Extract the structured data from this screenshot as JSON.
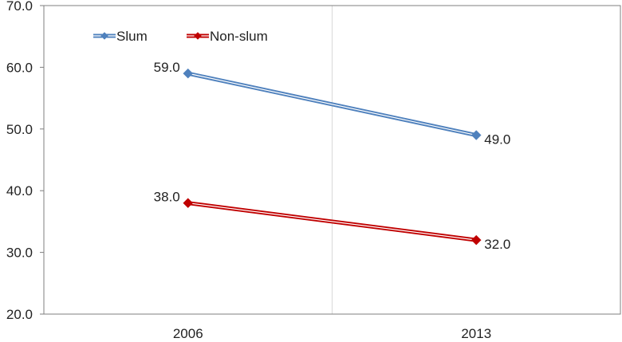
{
  "chart_data": {
    "type": "line",
    "categories": [
      "2006",
      "2013"
    ],
    "series": [
      {
        "name": "Slum",
        "values": [
          59.0,
          49.0
        ],
        "color": "#4F81BD",
        "marker": "diamond"
      },
      {
        "name": "Non-slum",
        "values": [
          38.0,
          32.0
        ],
        "color": "#C00000",
        "marker": "diamond"
      }
    ],
    "data_labels": [
      {
        "series": 0,
        "point": 0,
        "text": "59.0",
        "side": "left"
      },
      {
        "series": 0,
        "point": 1,
        "text": "49.0",
        "side": "right"
      },
      {
        "series": 1,
        "point": 0,
        "text": "38.0",
        "side": "left"
      },
      {
        "series": 1,
        "point": 1,
        "text": "32.0",
        "side": "right"
      }
    ],
    "y_ticks": [
      "20.0",
      "30.0",
      "40.0",
      "50.0",
      "60.0",
      "70.0"
    ],
    "ylim": [
      20,
      70
    ],
    "title": "",
    "xlabel": "",
    "ylabel": "",
    "grid": "vertical",
    "legend": "top-left"
  }
}
